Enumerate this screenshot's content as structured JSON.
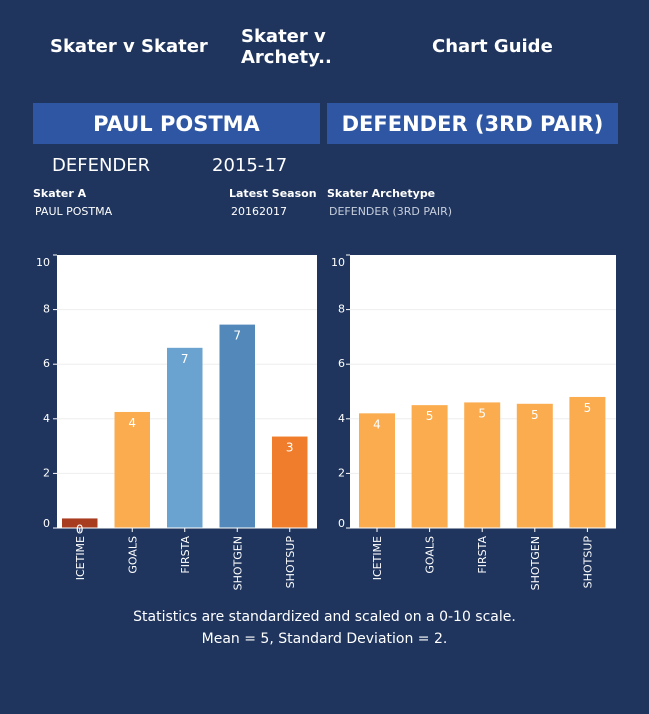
{
  "tabs": [
    {
      "label": "Skater v Skater",
      "active": false
    },
    {
      "label": "Skater v Archety..",
      "active": true
    },
    {
      "label": "Chart Guide",
      "active": false
    }
  ],
  "banners": {
    "skater_name": "PAUL POSTMA",
    "archetype_name": "DEFENDER (3RD PAIR)"
  },
  "summary": {
    "position": "DEFENDER",
    "seasons": "2015-17"
  },
  "details": {
    "skater_a_label": "Skater A",
    "skater_a_value": "PAUL POSTMA",
    "latest_season_label": "Latest Season",
    "latest_season_value": "20162017",
    "archetype_label": "Skater Archetype",
    "archetype_value": "DEFENDER (3RD PAIR)"
  },
  "footer": {
    "line1": "Statistics are standardized and scaled on a 0-10 scale.",
    "line2": "Mean = 5, Standard Deviation = 2."
  },
  "colors": {
    "background": "#1f355e",
    "tab_inactive": "#2e4876",
    "tab_active": "#3d5789",
    "banner": "#2f56a3"
  },
  "chart_data": [
    {
      "type": "bar",
      "title": "PAUL POSTMA",
      "categories": [
        "ICETIME",
        "GOALS",
        "FIRSTA",
        "SHOTGEN",
        "SHOTSUP"
      ],
      "values": [
        0.35,
        4.25,
        6.6,
        7.45,
        3.35
      ],
      "labels": [
        "0",
        "4",
        "7",
        "7",
        "3"
      ],
      "colors": [
        "#a83c1f",
        "#fbac4f",
        "#6ba3d0",
        "#5289ba",
        "#f07d2c"
      ],
      "ylim": [
        0,
        10
      ],
      "yticks": [
        "0",
        "2",
        "4",
        "6",
        "8",
        "10"
      ],
      "xlabel": "",
      "ylabel": ""
    },
    {
      "type": "bar",
      "title": "DEFENDER (3RD PAIR)",
      "categories": [
        "ICETIME",
        "GOALS",
        "FIRSTA",
        "SHOTGEN",
        "SHOTSUP"
      ],
      "values": [
        4.2,
        4.5,
        4.6,
        4.55,
        4.8
      ],
      "labels": [
        "4",
        "5",
        "5",
        "5",
        "5"
      ],
      "colors": [
        "#fbac4f",
        "#fbac4f",
        "#fbac4f",
        "#fbac4f",
        "#fbac4f"
      ],
      "ylim": [
        0,
        10
      ],
      "yticks": [
        "0",
        "2",
        "4",
        "6",
        "8",
        "10"
      ],
      "xlabel": "",
      "ylabel": ""
    }
  ]
}
